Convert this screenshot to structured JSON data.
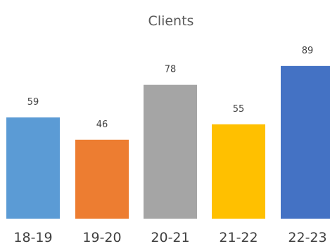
{
  "chart_data": {
    "type": "bar",
    "title": "Clients",
    "categories": [
      "18-19",
      "19-20",
      "20-21",
      "21-22",
      "22-23"
    ],
    "values": [
      59,
      46,
      78,
      55,
      89
    ],
    "colors": [
      "#5B9BD5",
      "#ED7D31",
      "#A5A5A5",
      "#FFC000",
      "#4472C4"
    ],
    "ylim": [
      0,
      100
    ],
    "grid": false,
    "data_labels": true
  }
}
